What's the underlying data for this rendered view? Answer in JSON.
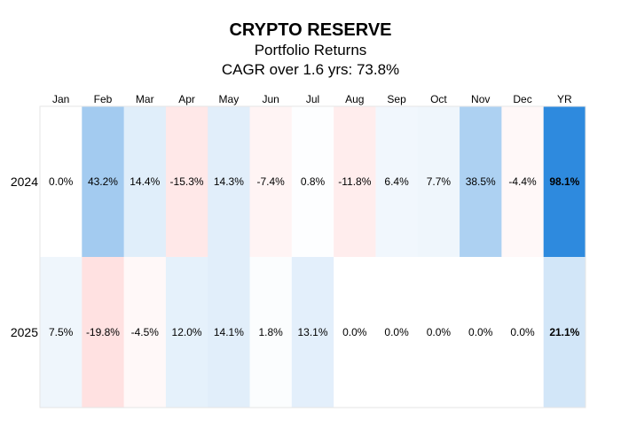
{
  "chart_data": {
    "type": "heatmap",
    "title": "CRYPTO RESERVE",
    "subtitle": "Portfolio Returns",
    "subtitle2": "CAGR over 1.6 yrs: 73.8%",
    "columns": [
      "Jan",
      "Feb",
      "Mar",
      "Apr",
      "May",
      "Jun",
      "Jul",
      "Aug",
      "Sep",
      "Oct",
      "Nov",
      "Dec",
      "YR"
    ],
    "rows": [
      "2024",
      "2025"
    ],
    "values": [
      [
        0.0,
        43.2,
        14.4,
        -15.3,
        14.3,
        -7.4,
        0.8,
        -11.8,
        6.4,
        7.7,
        38.5,
        -4.4,
        98.1
      ],
      [
        7.5,
        -19.8,
        -4.5,
        12.0,
        14.1,
        1.8,
        13.1,
        0.0,
        0.0,
        0.0,
        0.0,
        0.0,
        21.1
      ]
    ],
    "labels": [
      [
        "0.0%",
        "43.2%",
        "14.4%",
        "-15.3%",
        "14.3%",
        "-7.4%",
        "0.8%",
        "-11.8%",
        "6.4%",
        "7.7%",
        "38.5%",
        "-4.4%",
        "98.1%"
      ],
      [
        "7.5%",
        "-19.8%",
        "-4.5%",
        "12.0%",
        "14.1%",
        "1.8%",
        "13.1%",
        "0.0%",
        "0.0%",
        "0.0%",
        "0.0%",
        "0.0%",
        "21.1%"
      ]
    ],
    "bold_column": "YR",
    "colors": {
      "positive": "#2e8ade",
      "negative": "#ff6b6b",
      "neutral": "#ffffff",
      "grid": "#e6e6e6"
    },
    "legend": false
  }
}
